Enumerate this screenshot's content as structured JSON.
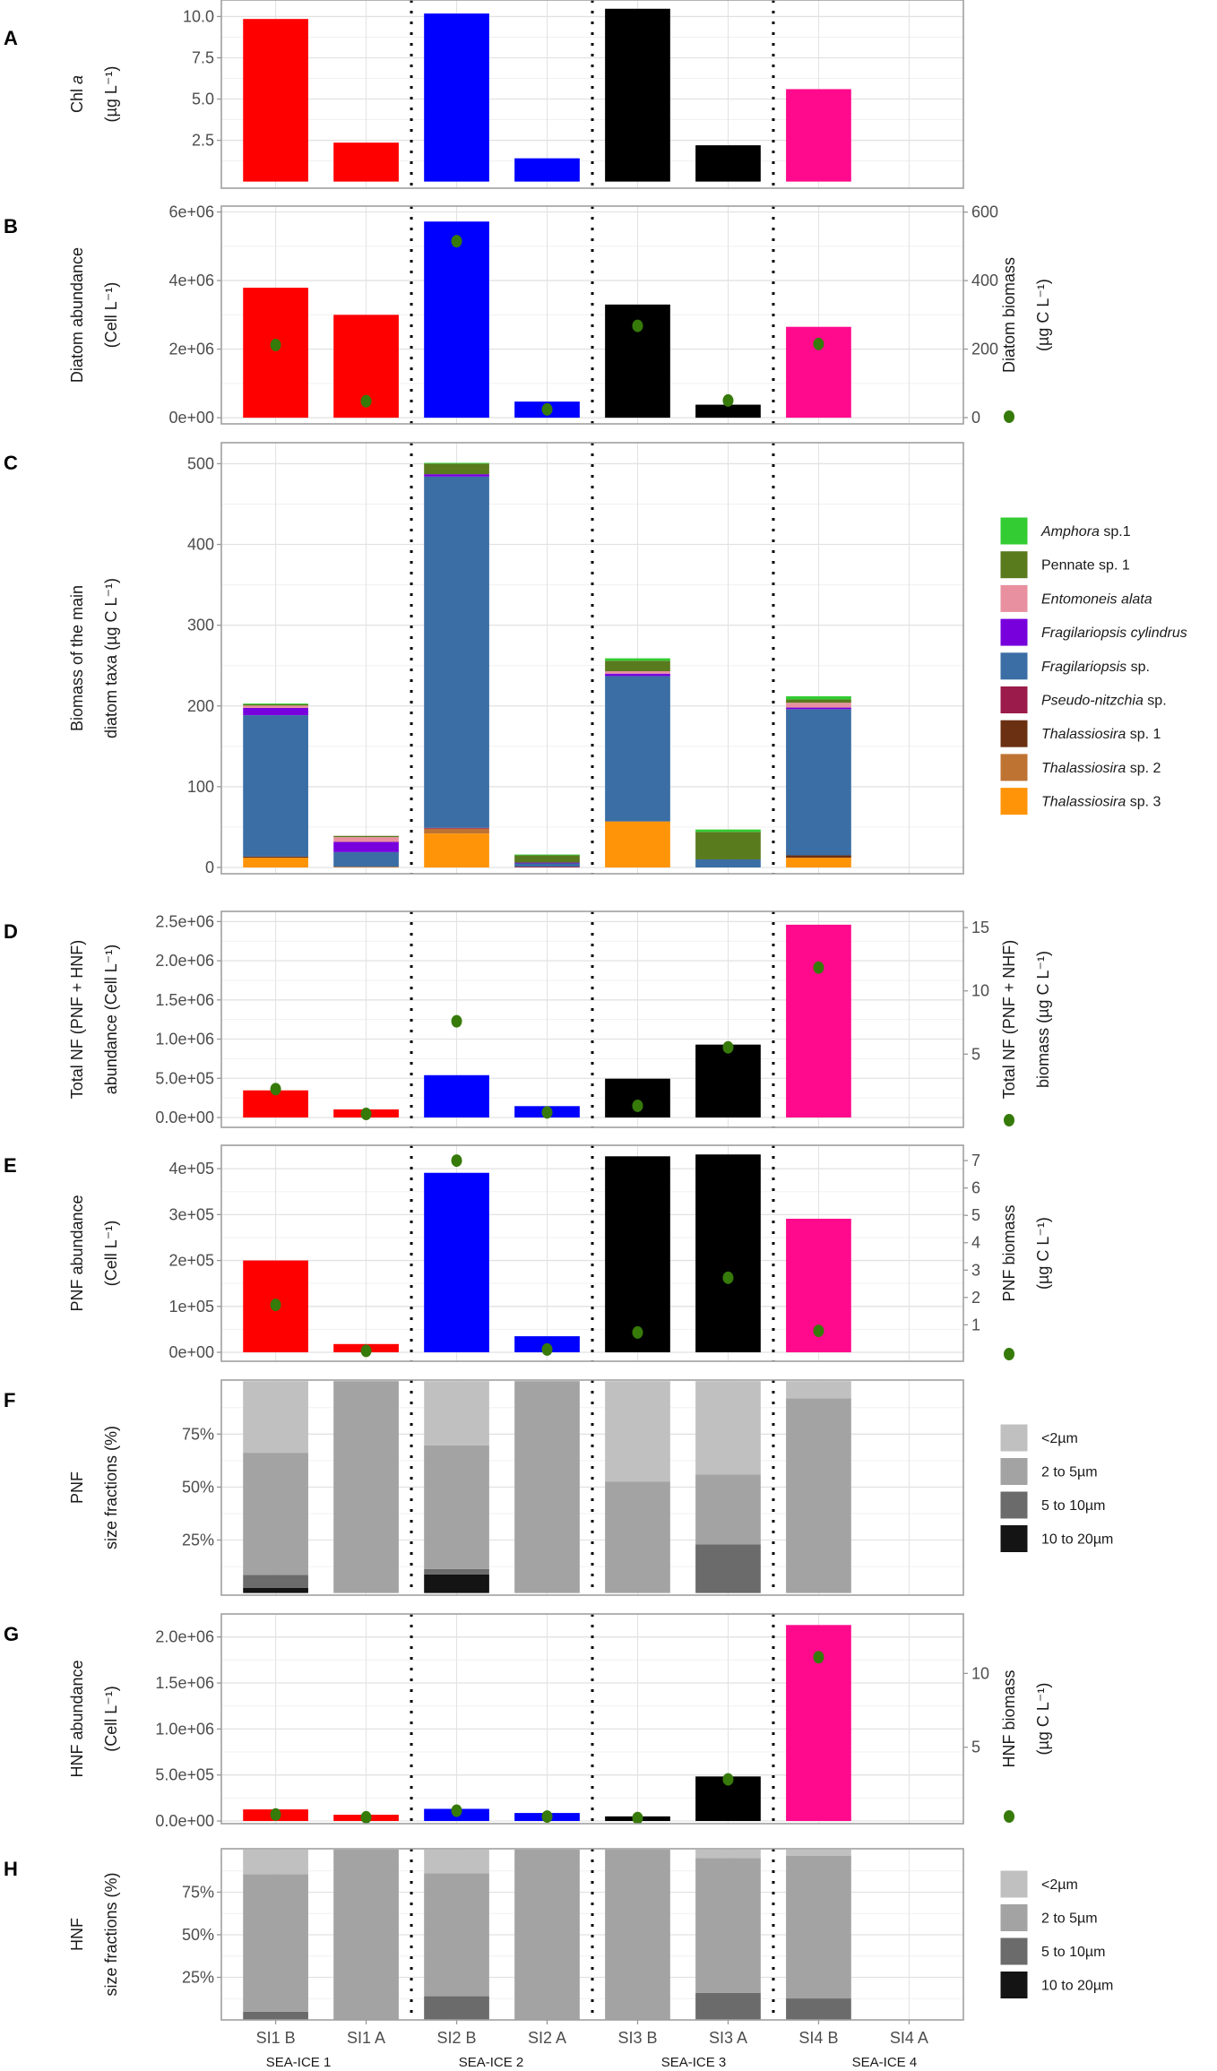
{
  "chart_data": {
    "type": "bar",
    "categories": [
      "SI1 B",
      "SI1 A",
      "SI2 B",
      "SI2 A",
      "SI3 B",
      "SI3 A",
      "SI4 B",
      "SI4 A"
    ],
    "groups": [
      "SEA-ICE 1",
      "SEA-ICE 2",
      "SEA-ICE 3",
      "SEA-ICE 4"
    ],
    "station_colors": [
      "#ff0000",
      "#ff0000",
      "#0000ff",
      "#0000ff",
      "#000000",
      "#000000",
      "#ff0a8c",
      "#ff0a8c"
    ],
    "dot_color": "#367a0a",
    "panels": [
      {
        "id": "A",
        "type": "bar",
        "ylabel": [
          {
            "text": "Chl ",
            "italic": "a"
          },
          "(µg L⁻¹)"
        ],
        "ylim": [
          -0.4,
          11.0
        ],
        "yticks": [
          2.5,
          5,
          7.5,
          10
        ],
        "ytick_labels": [
          "2.5",
          "5.0",
          "7.5",
          "10.0"
        ],
        "values": [
          9.85,
          2.36,
          10.18,
          1.41,
          10.47,
          2.2,
          5.6,
          null
        ]
      },
      {
        "id": "B",
        "type": "bar",
        "ylabel": [
          "Diatom abundance",
          "(Cell L⁻¹)"
        ],
        "ylim": [
          -180000,
          6170000
        ],
        "yticks": [
          0,
          2000000,
          4000000,
          6000000
        ],
        "ytick_labels": [
          "0e+00",
          "2e+06",
          "4e+06",
          "6e+06"
        ],
        "values": [
          3790000,
          3000000,
          5720000,
          470000,
          3300000,
          380000,
          2650000,
          null
        ],
        "y2label": [
          "Diatom biomass",
          "(µg C L⁻¹)"
        ],
        "y2lim": [
          -18.3,
          617.5
        ],
        "y2ticks": [
          0,
          200,
          400,
          600
        ],
        "y2tick_labels": [
          "0",
          "200",
          "400",
          "600"
        ],
        "dots": [
          212,
          48,
          515,
          24,
          268,
          50,
          215,
          null
        ]
      },
      {
        "id": "C",
        "type": "stack",
        "ylabel": [
          "Biomass of the main",
          "diatom taxa (µg C L⁻¹)"
        ],
        "ylim": [
          -7.8,
          526
        ],
        "yticks": [
          0,
          100,
          200,
          300,
          400,
          500
        ],
        "ytick_labels": [
          "0",
          "100",
          "200",
          "300",
          "400",
          "500"
        ],
        "series": [
          {
            "name": {
              "italic": "Thalassiosira",
              "text": " sp. 3"
            },
            "color": "#ff9408",
            "values": [
              12,
              0,
              42,
              0,
              57,
              0,
              12,
              0
            ]
          },
          {
            "name": {
              "italic": "Thalassiosira",
              "text": " sp. 2"
            },
            "color": "#bf7333",
            "values": [
              0,
              1,
              6,
              0,
              0,
              0,
              0,
              0
            ]
          },
          {
            "name": {
              "italic": "Thalassiosira",
              "text": " sp. 1"
            },
            "color": "#6b3012",
            "values": [
              1.5,
              0,
              0,
              0,
              0,
              0,
              3,
              0
            ]
          },
          {
            "name": {
              "italic": "Pseudo-nitzchia",
              "text": " sp."
            },
            "color": "#9b1b4a",
            "values": [
              0,
              0,
              1,
              1,
              0,
              0,
              0,
              0
            ]
          },
          {
            "name": {
              "italic": "Fragilariopsis",
              "text": " sp."
            },
            "color": "#3a6ea5",
            "values": [
              175,
              18,
              435,
              4,
              180,
              10,
              181,
              0
            ]
          },
          {
            "name": {
              "italic": "Fragilariopsis cylindrus",
              "text": ""
            },
            "color": "#7700dd",
            "values": [
              9,
              12.6,
              3,
              1,
              3,
              0,
              2,
              0
            ]
          },
          {
            "name": {
              "italic": "Entomoneis alata",
              "text": ""
            },
            "color": "#e8909f",
            "values": [
              3,
              6,
              0,
              0,
              3,
              0,
              6,
              0
            ]
          },
          {
            "name": {
              "italic": "",
              "text": "Pennate sp. 1"
            },
            "color": "#5a7a1e",
            "values": [
              1.5,
              1.5,
              13,
              9,
              13,
              34,
              4,
              0
            ]
          },
          {
            "name": {
              "italic": "Amphora",
              "text": " sp.1"
            },
            "color": "#33cc33",
            "values": [
              1,
              0,
              1,
              1,
              3,
              3,
              4,
              0
            ]
          }
        ]
      },
      {
        "id": "D",
        "type": "bar",
        "ylabel": [
          "Total NF (PNF + HNF)",
          "abundance (Cell L⁻¹)"
        ],
        "ylim": [
          -126000,
          2630000
        ],
        "yticks": [
          0,
          500000,
          1000000,
          1500000,
          2000000,
          2500000
        ],
        "ytick_labels": [
          "0.0e+00",
          "5.0e+05",
          "1.0e+06",
          "1.5e+06",
          "2.0e+06",
          "2.5e+06"
        ],
        "values": [
          346000,
          103000,
          540000,
          145000,
          495000,
          930000,
          2460000,
          null
        ],
        "y2label": [
          "Total NF (PNF + NHF)",
          "biomass (µg C L⁻¹)"
        ],
        "y2lim": [
          -0.78,
          16.28
        ],
        "y2ticks": [
          5,
          10,
          15
        ],
        "y2tick_labels": [
          "5",
          "10",
          "15"
        ],
        "dots": [
          2.24,
          0.28,
          7.6,
          0.4,
          0.92,
          5.54,
          11.84,
          null
        ]
      },
      {
        "id": "E",
        "type": "bar",
        "ylabel": [
          "PNF abundance",
          "(Cell L⁻¹)"
        ],
        "ylim": [
          -19500,
          451000
        ],
        "yticks": [
          0,
          100000,
          200000,
          300000,
          400000
        ],
        "ytick_labels": [
          "0e+00",
          "1e+05",
          "2e+05",
          "3e+05",
          "4e+05"
        ],
        "values": [
          200000,
          18000,
          391000,
          35000,
          427000,
          431000,
          291000,
          null
        ],
        "y2label": [
          "PNF biomass",
          "(µg C L⁻¹)"
        ],
        "y2lim": [
          -0.33,
          7.56
        ],
        "y2ticks": [
          1,
          2,
          3,
          4,
          5,
          6,
          7
        ],
        "y2tick_labels": [
          "1",
          "2",
          "3",
          "4",
          "5",
          "6",
          "7"
        ],
        "dots": [
          1.73,
          0.05,
          7.0,
          0.1,
          0.72,
          2.72,
          0.78,
          null
        ]
      },
      {
        "id": "F",
        "type": "stack",
        "ylabel": [
          "PNF",
          "size fractions (%)"
        ],
        "ylim": [
          -1,
          100.5
        ],
        "yticks": [
          25,
          50,
          75
        ],
        "ytick_labels": [
          "25%",
          "50%",
          "75%"
        ],
        "series": [
          {
            "name": "10 to 20µm",
            "color": "#141414",
            "values": [
              2.5,
              0,
              8.8,
              0,
              0,
              0,
              0,
              0
            ]
          },
          {
            "name": "5 to 10µm",
            "color": "#6b6b6b",
            "values": [
              6,
              0,
              2.5,
              0,
              0,
              23,
              0,
              0
            ]
          },
          {
            "name": "2 to 5µm",
            "color": "#a3a3a3",
            "values": [
              57.7,
              100,
              58.4,
              100,
              52.5,
              32.9,
              91.9,
              0
            ]
          },
          {
            "name": "<2µm",
            "color": "#c0c0c0",
            "values": [
              33.8,
              0,
              30.3,
              0,
              47.5,
              44.1,
              8.1,
              0
            ]
          }
        ]
      },
      {
        "id": "G",
        "type": "bar",
        "ylabel": [
          "HNF abundance",
          "(Cell L⁻¹)"
        ],
        "ylim": [
          -29000,
          2250000
        ],
        "yticks": [
          0,
          500000,
          1000000,
          1500000,
          2000000
        ],
        "ytick_labels": [
          "0.0e+00",
          "5.0e+05",
          "1.0e+06",
          "1.5e+06",
          "2.0e+06"
        ],
        "values": [
          126000,
          68000,
          132000,
          87000,
          50000,
          484000,
          2130000,
          null
        ],
        "y2label": [
          "HNF biomass",
          "(µg C L⁻¹)"
        ],
        "y2lim": [
          -0.18,
          14.03
        ],
        "y2ticks": [
          5,
          10
        ],
        "y2tick_labels": [
          "5",
          "10"
        ],
        "dots": [
          0.44,
          0.25,
          0.7,
          0.3,
          0.2,
          2.82,
          11.1,
          null
        ]
      },
      {
        "id": "H",
        "type": "stack",
        "ylabel": [
          "HNF",
          "size fractions (%)"
        ],
        "ylim": [
          0,
          100.5
        ],
        "yticks": [
          25,
          50,
          75
        ],
        "ytick_labels": [
          "25%",
          "50%",
          "75%"
        ],
        "series": [
          {
            "name": "10 to 20µm",
            "color": "#141414",
            "values": [
              0,
              0,
              0,
              0,
              0,
              0,
              0,
              0
            ]
          },
          {
            "name": "5 to 10µm",
            "color": "#6b6b6b",
            "values": [
              4.8,
              0,
              13.9,
              0,
              0,
              15.8,
              12.6,
              0
            ]
          },
          {
            "name": "2 to 5µm",
            "color": "#a3a3a3",
            "values": [
              80.8,
              100,
              72.2,
              100,
              100,
              79.2,
              83.7,
              0
            ]
          },
          {
            "name": "<2µm",
            "color": "#c0c0c0",
            "values": [
              14.4,
              0,
              13.9,
              0,
              0,
              5,
              3.7,
              0
            ]
          }
        ]
      }
    ]
  }
}
